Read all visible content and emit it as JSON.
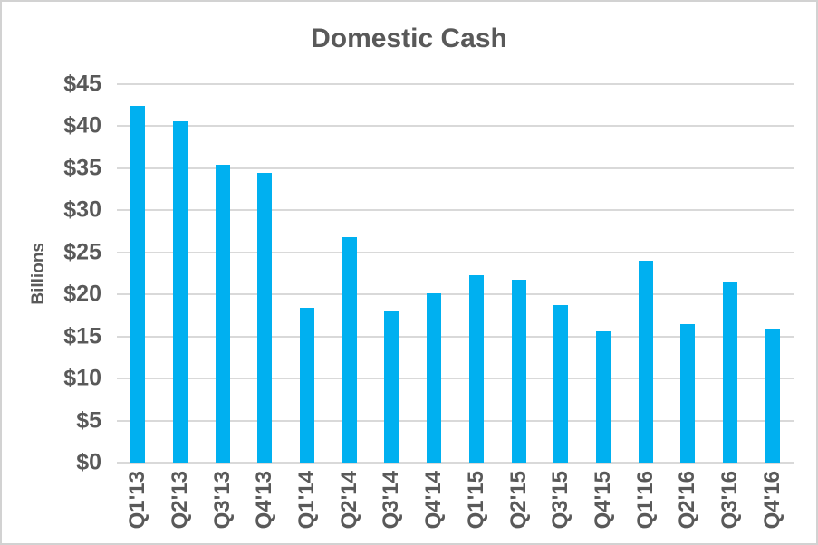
{
  "chart_data": {
    "type": "bar",
    "title": "Domestic Cash",
    "ylabel": "Billions",
    "xlabel": "",
    "categories": [
      "Q1'13",
      "Q2'13",
      "Q3'13",
      "Q4'13",
      "Q1'14",
      "Q2'14",
      "Q3'14",
      "Q4'14",
      "Q1'15",
      "Q2'15",
      "Q3'15",
      "Q4'15",
      "Q1'16",
      "Q2'16",
      "Q3'16",
      "Q4'16"
    ],
    "values": [
      42.4,
      40.6,
      35.4,
      34.4,
      18.4,
      26.8,
      18.1,
      20.1,
      22.3,
      21.7,
      18.7,
      15.6,
      24.0,
      16.5,
      21.5,
      15.9
    ],
    "ylim": [
      0,
      45
    ],
    "y_tick_step": 5,
    "y_tick_labels": [
      "$0",
      "$5",
      "$10",
      "$15",
      "$20",
      "$25",
      "$30",
      "$35",
      "$40",
      "$45"
    ],
    "grid": true,
    "legend": "none",
    "colors": {
      "bar": "#00B0F0",
      "gridline": "#D9D9D9",
      "text": "#595959",
      "border": "#D2D2D2"
    }
  }
}
